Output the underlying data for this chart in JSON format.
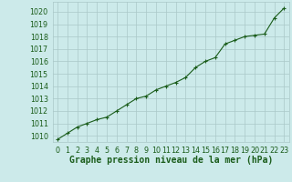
{
  "x": [
    0,
    1,
    2,
    3,
    4,
    5,
    6,
    7,
    8,
    9,
    10,
    11,
    12,
    13,
    14,
    15,
    16,
    17,
    18,
    19,
    20,
    21,
    22,
    23
  ],
  "y": [
    1009.7,
    1010.2,
    1010.7,
    1011.0,
    1011.3,
    1011.5,
    1012.0,
    1012.5,
    1013.0,
    1013.2,
    1013.7,
    1014.0,
    1014.3,
    1014.7,
    1015.5,
    1016.0,
    1016.3,
    1017.4,
    1017.7,
    1018.0,
    1018.1,
    1018.2,
    1019.5,
    1020.3
  ],
  "ylim": [
    1009.5,
    1020.8
  ],
  "xlim": [
    -0.5,
    23.5
  ],
  "yticks": [
    1010,
    1011,
    1012,
    1013,
    1014,
    1015,
    1016,
    1017,
    1018,
    1019,
    1020
  ],
  "xticks": [
    0,
    1,
    2,
    3,
    4,
    5,
    6,
    7,
    8,
    9,
    10,
    11,
    12,
    13,
    14,
    15,
    16,
    17,
    18,
    19,
    20,
    21,
    22,
    23
  ],
  "line_color": "#1a5c1a",
  "marker": "P",
  "marker_size": 2.5,
  "bg_color": "#cceaea",
  "grid_color": "#aac8c8",
  "xlabel": "Graphe pression niveau de la mer (hPa)",
  "xlabel_color": "#1a5c1a",
  "xlabel_fontsize": 7.0,
  "tick_fontsize": 5.8,
  "line_width": 0.8
}
